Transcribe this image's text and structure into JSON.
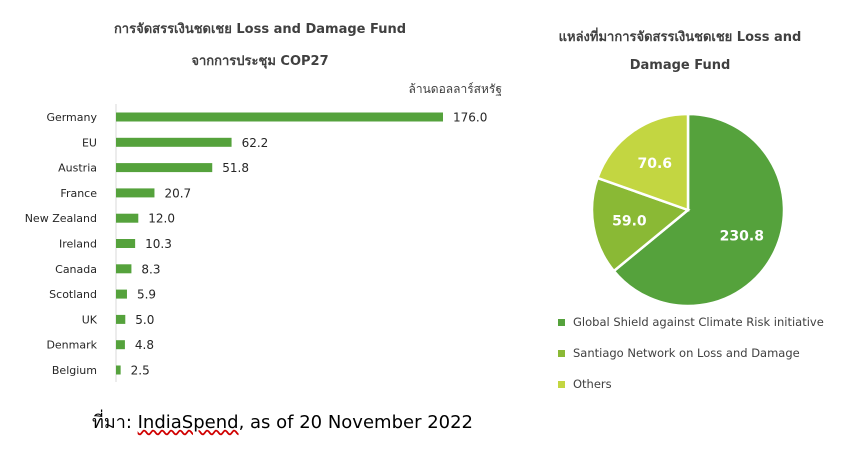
{
  "chart_data": [
    {
      "type": "bar",
      "orientation": "horizontal",
      "title": "การจัดสรรเงินชดเชย Loss and Damage Fund",
      "subtitle": "จากการประชุม COP27",
      "unit_label": "ล้านดอลลาร์สหรัฐ",
      "categories": [
        "Germany",
        "EU",
        "Austria",
        "France",
        "New Zealand",
        "Ireland",
        "Canada",
        "Scotland",
        "UK",
        "Denmark",
        "Belgium"
      ],
      "values": [
        176.0,
        62.2,
        51.8,
        20.7,
        12.0,
        10.3,
        8.3,
        5.9,
        5.0,
        4.8,
        2.5
      ],
      "value_labels": [
        "176.0",
        "62.2",
        "51.8",
        "20.7",
        "12.0",
        "10.3",
        "8.3",
        "5.9",
        "5.0",
        "4.8",
        "2.5"
      ],
      "color": "#55a23c",
      "grid": false
    },
    {
      "type": "pie",
      "title": "แหล่งที่มาการจัดสรรเงินชดเชย Loss and Damage Fund",
      "title_line1": "แหล่งที่มาการจัดสรรเงินชดเชย Loss and",
      "title_line2": "Damage Fund",
      "legend_position": "bottom",
      "slices": [
        {
          "name": "Global Shield against Climate Risk initiative",
          "value": 230.8,
          "label": "230.8",
          "color": "#55a23c"
        },
        {
          "name": "Santiago Network on Loss and Damage",
          "value": 59.0,
          "label": "59.0",
          "color": "#8ab935"
        },
        {
          "name": "Others",
          "value": 70.6,
          "label": "70.6",
          "color": "#c3d641"
        }
      ]
    }
  ],
  "source": {
    "prefix": "ที่มา: ",
    "link": "IndiaSpend",
    "suffix": ", as of 20 November 2022"
  }
}
